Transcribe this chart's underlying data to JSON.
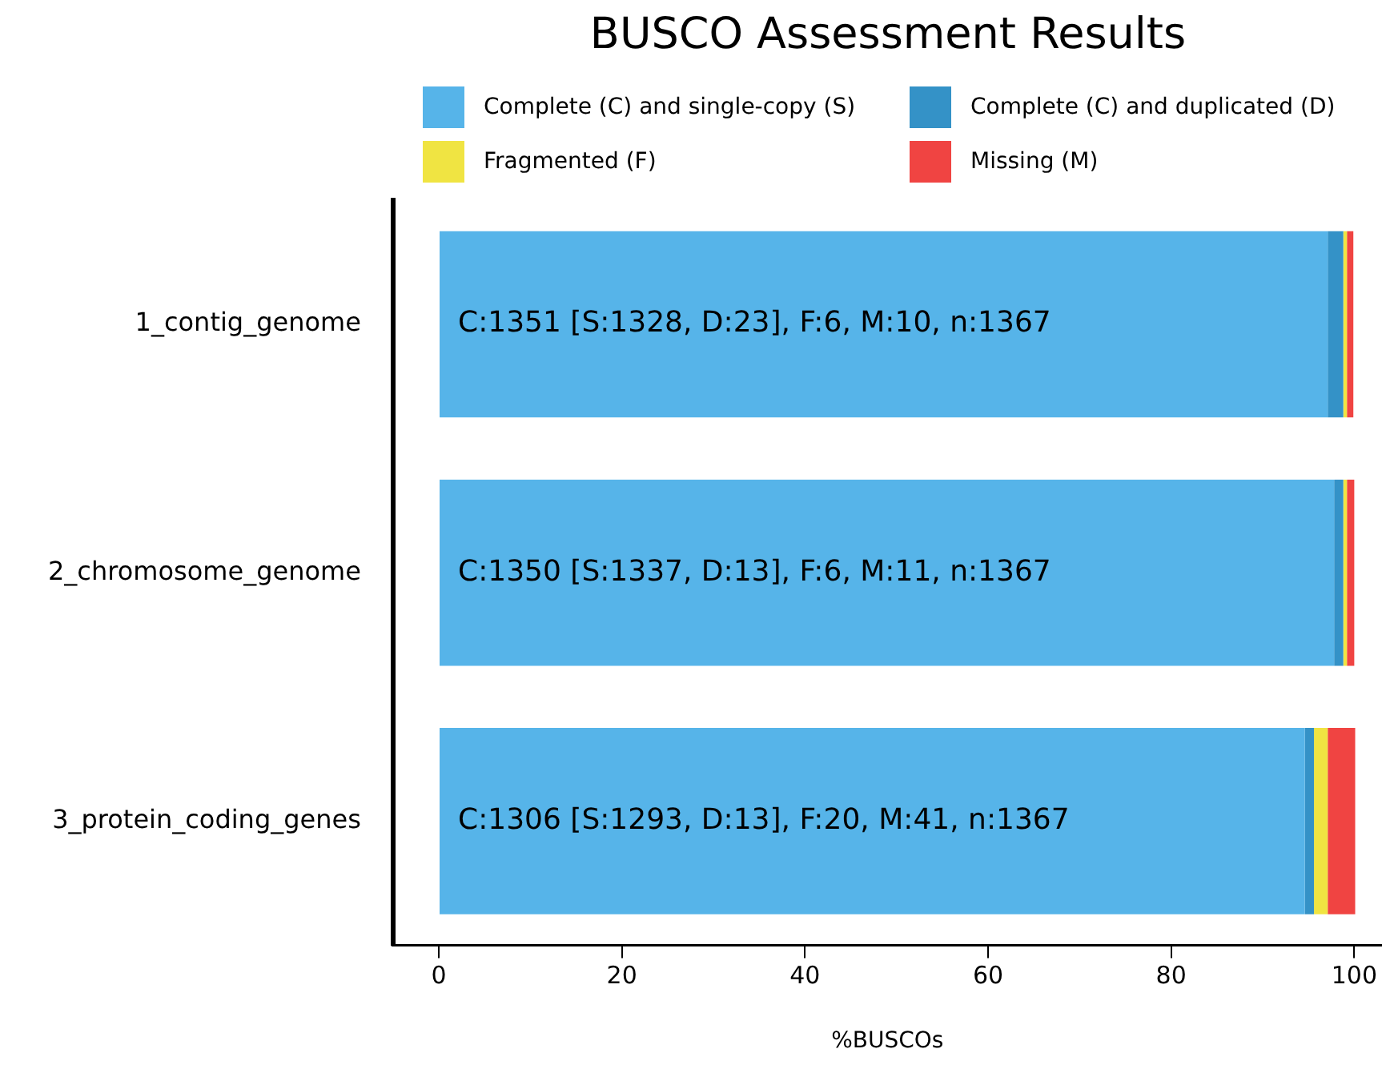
{
  "chart_data": {
    "type": "bar",
    "orientation": "horizontal",
    "stacked": true,
    "title": "BUSCO Assessment Results",
    "xlabel": "%BUSCOs",
    "categories": [
      "1_contig_genome",
      "2_chromosome_genome",
      "3_protein_coding_genes"
    ],
    "series": [
      {
        "name": "Complete (C) and single-copy (S)",
        "color": "#56b4e9",
        "values": [
          97.1,
          97.8,
          94.6
        ]
      },
      {
        "name": "Complete (C) and duplicated (D)",
        "color": "#3492c7",
        "values": [
          1.7,
          1.0,
          1.0
        ]
      },
      {
        "name": "Fragmented (F)",
        "color": "#f0e442",
        "values": [
          0.4,
          0.4,
          1.5
        ]
      },
      {
        "name": "Missing (M)",
        "color": "#f04442",
        "values": [
          0.7,
          0.8,
          3.0
        ]
      }
    ],
    "xlim": [
      -5,
      103
    ],
    "xticks": [
      0,
      20,
      40,
      60,
      80,
      100
    ],
    "grid": false,
    "legend": "top",
    "annotations": [
      "C:1351 [S:1328, D:23], F:6, M:10, n:1367",
      "C:1350 [S:1337, D:13], F:6, M:11, n:1367",
      "C:1306 [S:1293, D:13], F:20, M:41, n:1367"
    ]
  }
}
